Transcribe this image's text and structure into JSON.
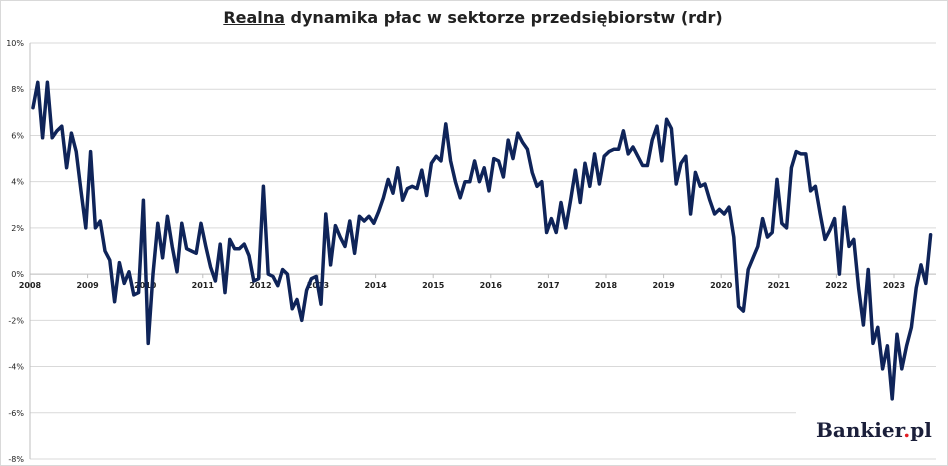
{
  "title": {
    "underlined": "Realna",
    "rest": " dynamika płac w sektorze przedsiębiorstw (rdr)"
  },
  "logo": {
    "name": "Bankier",
    "dot": ".",
    "suffix": "pl"
  },
  "chart_data": {
    "type": "line",
    "title": "Realna dynamika płac w sektorze przedsiębiorstw (rdr)",
    "xlabel": "",
    "ylabel": "",
    "ylim": [
      -8,
      10
    ],
    "y_ticks": [
      "10%",
      "8%",
      "6%",
      "4%",
      "2%",
      "0%",
      "-2%",
      "-4%",
      "-6%",
      "-8%"
    ],
    "x_ticks": [
      "2008",
      "2009",
      "2010",
      "2011",
      "2012",
      "2013",
      "2014",
      "2015",
      "2016",
      "2017",
      "2018",
      "2019",
      "2020",
      "2021",
      "2022",
      "2023"
    ],
    "x_start_year": 2008,
    "grid": true,
    "color": "#0f2459",
    "series": [
      {
        "name": "",
        "values": [
          7.2,
          8.3,
          5.9,
          8.3,
          5.9,
          6.2,
          6.4,
          4.6,
          6.1,
          5.3,
          3.6,
          2.0,
          5.3,
          2.0,
          2.3,
          1.0,
          0.6,
          -1.2,
          0.5,
          -0.4,
          0.1,
          -0.9,
          -0.8,
          3.2,
          -3.0,
          0.0,
          2.2,
          0.7,
          2.5,
          1.2,
          0.1,
          2.2,
          1.1,
          1.0,
          0.9,
          2.2,
          1.2,
          0.3,
          -0.3,
          1.3,
          -0.8,
          1.5,
          1.1,
          1.1,
          1.3,
          0.8,
          -0.3,
          -0.2,
          3.8,
          0.0,
          -0.1,
          -0.5,
          0.2,
          0.0,
          -1.5,
          -1.1,
          -2.0,
          -0.7,
          -0.2,
          -0.1,
          -1.3,
          2.6,
          0.4,
          2.1,
          1.6,
          1.2,
          2.3,
          0.9,
          2.5,
          2.3,
          2.5,
          2.2,
          2.7,
          3.3,
          4.1,
          3.5,
          4.6,
          3.2,
          3.7,
          3.8,
          3.7,
          4.5,
          3.4,
          4.8,
          5.1,
          4.9,
          6.5,
          4.9,
          4.0,
          3.3,
          4.0,
          4.0,
          4.9,
          4.0,
          4.6,
          3.6,
          5.0,
          4.9,
          4.2,
          5.8,
          5.0,
          6.1,
          5.7,
          5.4,
          4.4,
          3.8,
          4.0,
          1.8,
          2.4,
          1.8,
          3.1,
          2.0,
          3.2,
          4.5,
          3.1,
          4.8,
          3.8,
          5.2,
          3.9,
          5.1,
          5.3,
          5.4,
          5.4,
          6.2,
          5.2,
          5.5,
          5.1,
          4.7,
          4.7,
          5.8,
          6.4,
          4.9,
          6.7,
          6.3,
          3.9,
          4.8,
          5.1,
          2.6,
          4.4,
          3.8,
          3.9,
          3.2,
          2.6,
          2.8,
          2.6,
          2.9,
          1.6,
          -1.4,
          -1.6,
          0.2,
          0.7,
          1.2,
          2.4,
          1.6,
          1.8,
          4.1,
          2.2,
          2.0,
          4.6,
          5.3,
          5.2,
          5.2,
          3.6,
          3.8,
          2.6,
          1.5,
          1.9,
          2.4,
          0.0,
          2.9,
          1.2,
          1.5,
          -0.6,
          -2.2,
          0.2,
          -3.0,
          -2.3,
          -4.1,
          -3.1,
          -5.4,
          -2.6,
          -4.1,
          -3.1,
          -2.3,
          -0.6,
          0.4,
          -0.4,
          1.7
        ]
      }
    ]
  }
}
